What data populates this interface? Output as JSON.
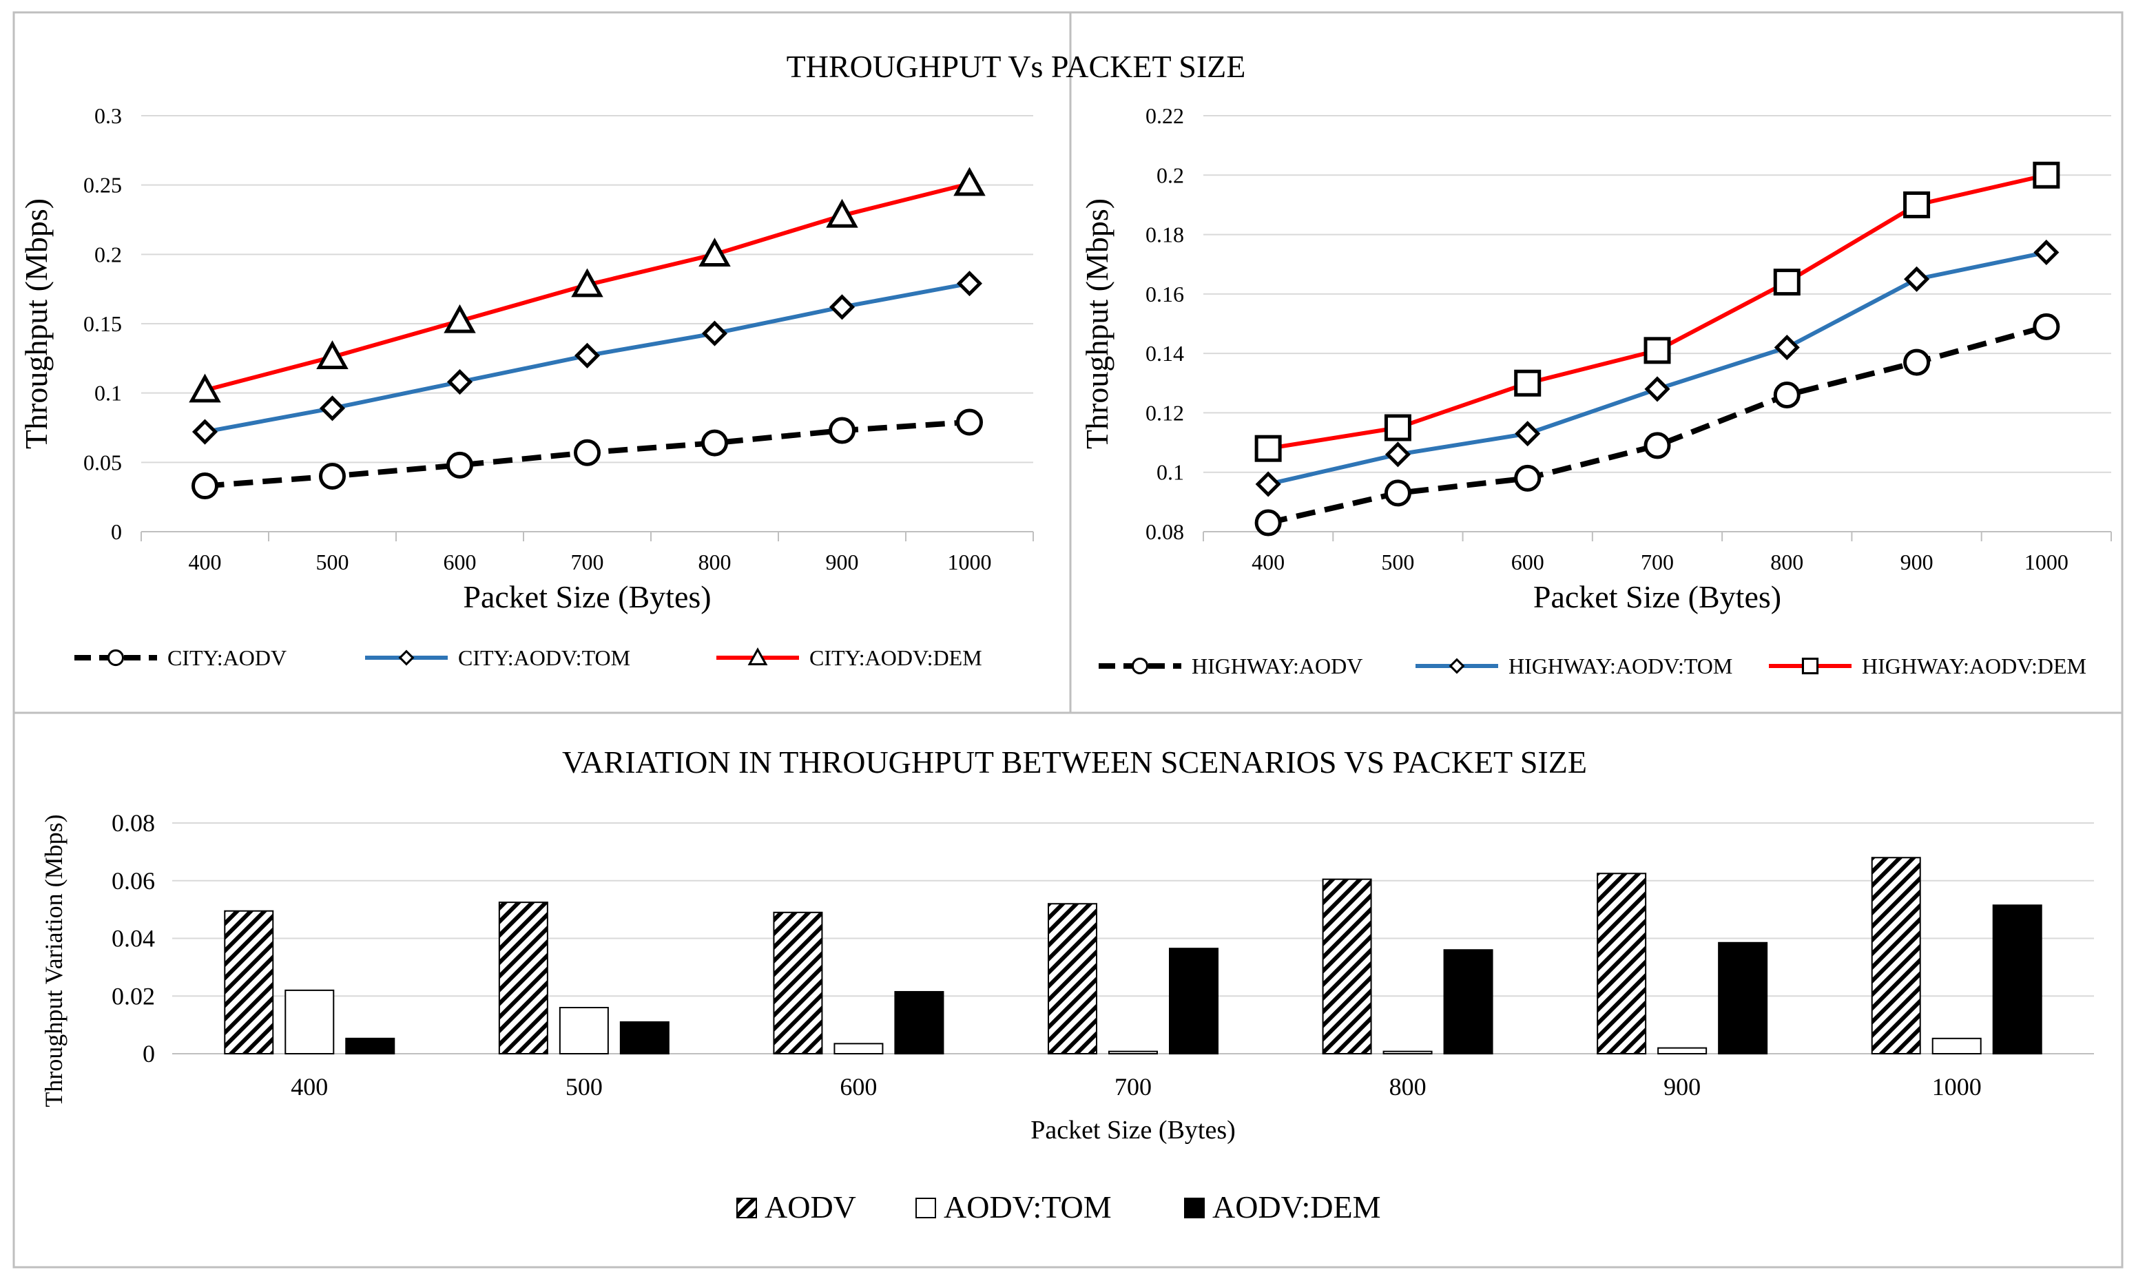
{
  "main_title": "THROUGHPUT  Vs PACKET SIZE",
  "colors": {
    "aodv": "#000000",
    "tom": "#2e75b6",
    "dem": "#ff0000",
    "grid": "#d9d9d9",
    "panel_border": "#bfbfbf"
  },
  "chart_data": [
    {
      "id": "city",
      "type": "line",
      "title": "",
      "xlabel": "Packet Size (Bytes)",
      "ylabel": "Throughput (Mbps)",
      "categories": [
        "400",
        "500",
        "600",
        "700",
        "800",
        "900",
        "1000"
      ],
      "ylim": [
        0,
        0.3
      ],
      "yticks": [
        "0",
        "0.05",
        "0.1",
        "0.15",
        "0.2",
        "0.25",
        "0.3"
      ],
      "grid": true,
      "legend_position": "bottom",
      "series": [
        {
          "name": "CITY:AODV",
          "style": "dashed",
          "marker": "circle",
          "color": "#000000",
          "values": [
            0.033,
            0.04,
            0.048,
            0.057,
            0.064,
            0.073,
            0.079
          ]
        },
        {
          "name": "CITY:AODV:TOM",
          "style": "solid",
          "marker": "diamond",
          "color": "#2e75b6",
          "values": [
            0.072,
            0.089,
            0.108,
            0.127,
            0.143,
            0.162,
            0.179
          ]
        },
        {
          "name": "CITY:AODV:DEM",
          "style": "solid",
          "marker": "triangle",
          "color": "#ff0000",
          "values": [
            0.102,
            0.126,
            0.152,
            0.178,
            0.2,
            0.228,
            0.251
          ]
        }
      ]
    },
    {
      "id": "highway",
      "type": "line",
      "title": "",
      "xlabel": "Packet Size (Bytes)",
      "ylabel": "Throughput (Mbps)",
      "categories": [
        "400",
        "500",
        "600",
        "700",
        "800",
        "900",
        "1000"
      ],
      "ylim": [
        0.08,
        0.22
      ],
      "yticks": [
        "0.08",
        "0.1",
        "0.12",
        "0.14",
        "0.16",
        "0.18",
        "0.2",
        "0.22"
      ],
      "grid": true,
      "legend_position": "bottom",
      "series": [
        {
          "name": "HIGHWAY:AODV",
          "style": "dashed",
          "marker": "circle",
          "color": "#000000",
          "values": [
            0.083,
            0.093,
            0.098,
            0.109,
            0.126,
            0.137,
            0.149
          ]
        },
        {
          "name": "HIGHWAY:AODV:TOM",
          "style": "solid",
          "marker": "diamond",
          "color": "#2e75b6",
          "values": [
            0.096,
            0.106,
            0.113,
            0.128,
            0.142,
            0.165,
            0.174
          ]
        },
        {
          "name": "HIGHWAY:AODV:DEM",
          "style": "solid",
          "marker": "square",
          "color": "#ff0000",
          "values": [
            0.108,
            0.115,
            0.13,
            0.141,
            0.164,
            0.19,
            0.2
          ]
        }
      ]
    },
    {
      "id": "variation",
      "type": "bar",
      "title": "VARIATION IN THROUGHPUT  BETWEEN SCENARIOS VS PACKET SIZE",
      "xlabel": "Packet Size (Bytes)",
      "ylabel": "Throughput Variation (Mbps)",
      "categories": [
        "400",
        "500",
        "600",
        "700",
        "800",
        "900",
        "1000"
      ],
      "ylim": [
        0,
        0.08
      ],
      "yticks": [
        "0",
        "0.02",
        "0.04",
        "0.06",
        "0.08"
      ],
      "grid": true,
      "legend_position": "bottom",
      "series": [
        {
          "name": "AODV",
          "fill": "hatched",
          "values": [
            0.0495,
            0.0525,
            0.049,
            0.052,
            0.0605,
            0.0625,
            0.068
          ]
        },
        {
          "name": "AODV:TOM",
          "fill": "white",
          "values": [
            0.022,
            0.016,
            0.0035,
            0.0008,
            0.0008,
            0.002,
            0.0053
          ]
        },
        {
          "name": "AODV:DEM",
          "fill": "black",
          "values": [
            0.0053,
            0.011,
            0.0215,
            0.0365,
            0.036,
            0.0385,
            0.0515
          ]
        }
      ]
    }
  ]
}
